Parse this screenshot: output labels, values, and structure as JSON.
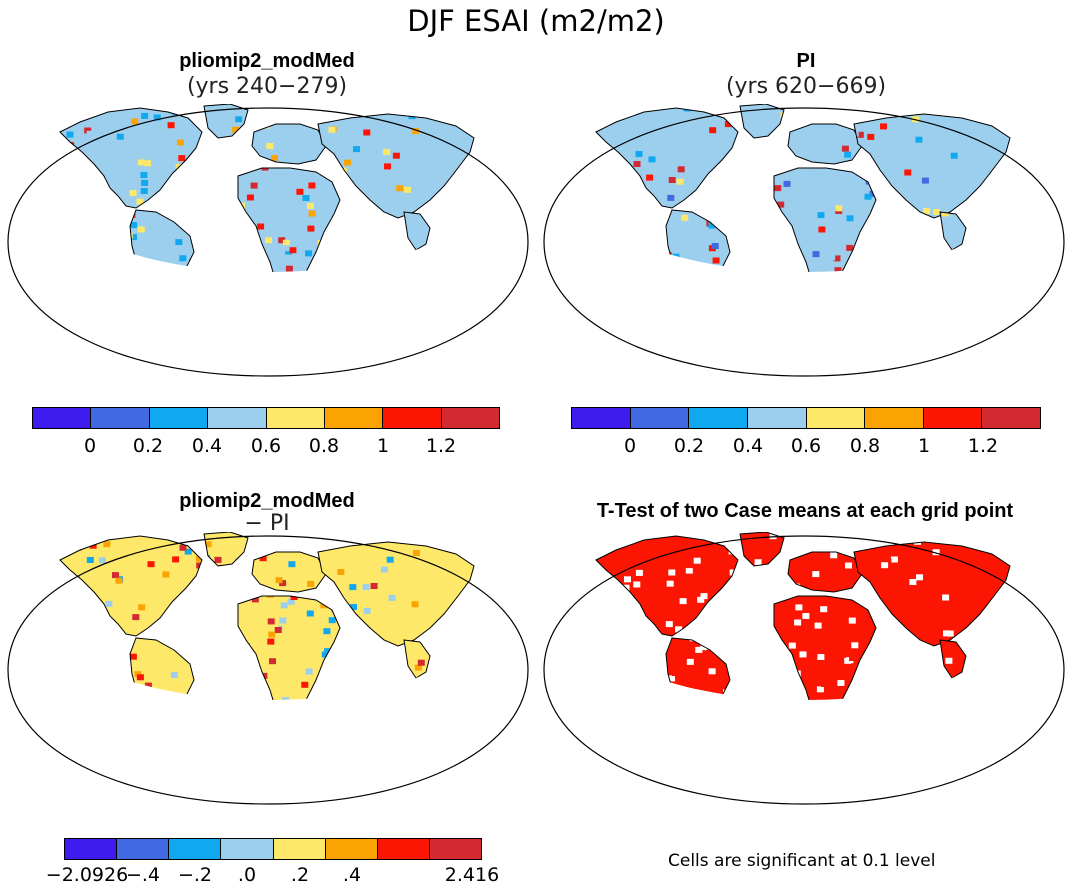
{
  "title": "DJF ESAI (m2/m2)",
  "panels": {
    "top_left": {
      "title": "pliomip2_modMed",
      "subtitle": "(yrs 240−279)"
    },
    "top_right": {
      "title": "PI",
      "subtitle": "(yrs 620−669)"
    },
    "bottom_left": {
      "title": "pliomip2_modMed",
      "subtitle": "− PI"
    },
    "bottom_right": {
      "title": "T-Test of two Case means at each grid point"
    }
  },
  "colorbars": {
    "absolute": {
      "colors": [
        "#3e1cf0",
        "#4169e1",
        "#10a9ef",
        "#9ccfee",
        "#fde869",
        "#fca304",
        "#fd1503",
        "#d32a31"
      ],
      "labels": [
        "0",
        "0.2",
        "0.4",
        "0.6",
        "0.8",
        "1",
        "1.2"
      ]
    },
    "difference": {
      "colors": [
        "#3e1cf0",
        "#4169e1",
        "#10a9ef",
        "#9ccfee",
        "#fde869",
        "#fca304",
        "#fd1503",
        "#d32a31"
      ],
      "labels": [
        "−2.0926",
        "−.4",
        "−.2",
        ".0",
        ".2",
        ".4",
        "2.416"
      ]
    }
  },
  "significance_note": "Cells are significant at 0.1 level",
  "map_colors": {
    "land_low": "#4169e1",
    "land_mid": "#9ccfee",
    "land_high": "#fd1503",
    "significant": "#fd1503",
    "antarctica_diff": "#fde869"
  }
}
